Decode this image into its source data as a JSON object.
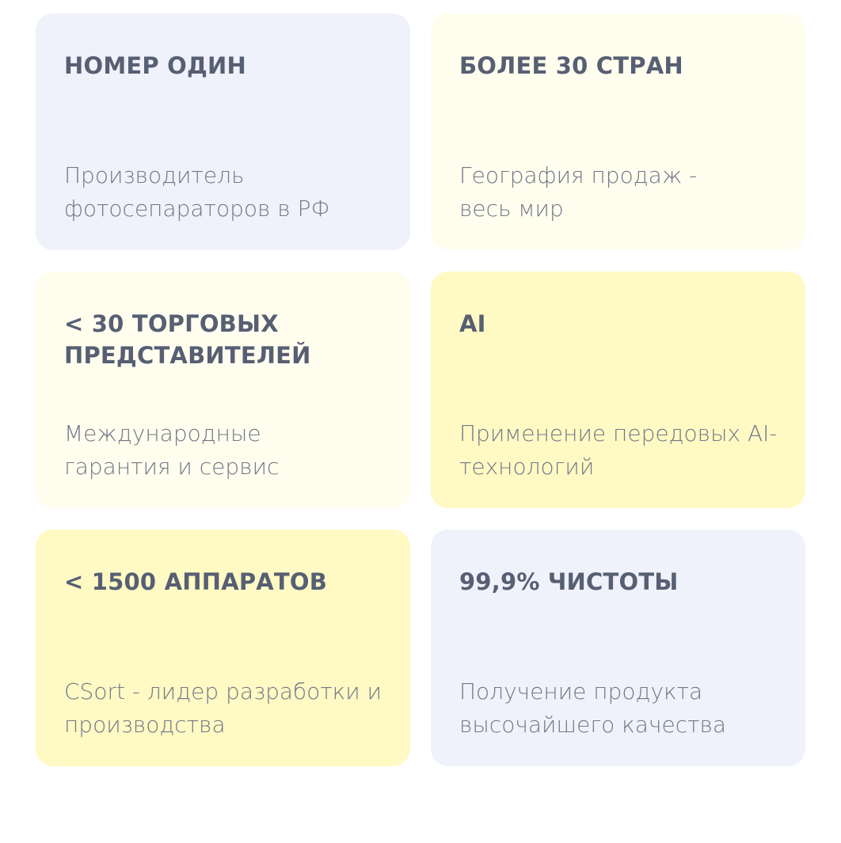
{
  "colors": {
    "blue": "#eff2fa",
    "cream": "#fffdee",
    "yellow": "#fff9c4",
    "heading": "#575f73",
    "text": "#727888"
  },
  "cards": [
    {
      "title": "НОМЕР ОДИН",
      "desc": "Производитель фотосепараторов в РФ",
      "bg": "#eff2fa"
    },
    {
      "title": "БОЛЕЕ 30 СТРАН",
      "desc": "География продаж - весь мир",
      "bg": "#fffdee"
    },
    {
      "title": "< 30 ТОРГОВЫХ ПРЕДСТАВИТЕЛЕЙ",
      "desc": "Международные гарантия и сервис",
      "bg": "#fffdee"
    },
    {
      "title": "AI",
      "desc": "Применение передовых AI-технологий",
      "bg": "#fff9c4"
    },
    {
      "title": "< 1500 АППАРАТОВ",
      "desc": "CSort - лидер разработки и производства",
      "bg": "#fff9c4"
    },
    {
      "title": "99,9% ЧИСТОТЫ",
      "desc": "Получение продукта высочайшего качества",
      "bg": "#eff2fa"
    }
  ]
}
